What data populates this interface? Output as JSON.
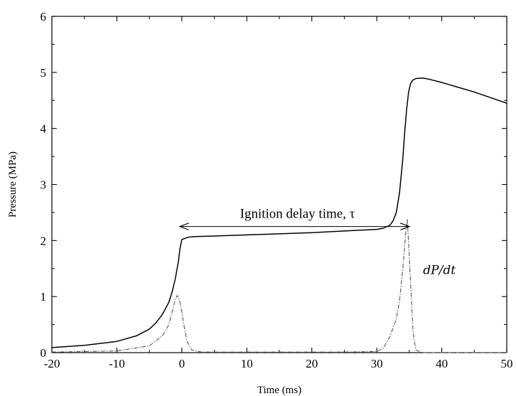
{
  "chart_data": {
    "type": "line",
    "title": "",
    "xlabel": "Time (ms)",
    "ylabel": "Pressure (MPa)",
    "xlim": [
      -20,
      50
    ],
    "ylim": [
      0,
      6
    ],
    "x_ticks": [
      -20,
      -10,
      0,
      10,
      20,
      30,
      40,
      50
    ],
    "y_ticks": [
      0,
      1,
      2,
      3,
      4,
      5,
      6
    ],
    "grid": false,
    "legend": "none",
    "series": [
      {
        "style": "solid",
        "color": "#000000",
        "x": [
          -20,
          -15,
          -10,
          -7,
          -5,
          -4,
          -3,
          -2,
          -1.5,
          -1,
          -0.5,
          -0.3,
          0,
          1,
          2,
          5,
          10,
          15,
          20,
          25,
          30,
          31,
          32,
          32.5,
          33,
          33.5,
          34,
          34.3,
          34.6,
          34.9,
          35.2,
          35.5,
          36,
          37,
          38,
          40,
          45,
          50
        ],
        "y": [
          0.09,
          0.13,
          0.2,
          0.3,
          0.42,
          0.53,
          0.68,
          0.9,
          1.08,
          1.32,
          1.65,
          1.85,
          2.02,
          2.06,
          2.07,
          2.08,
          2.1,
          2.12,
          2.14,
          2.17,
          2.2,
          2.22,
          2.27,
          2.35,
          2.5,
          2.85,
          3.45,
          3.95,
          4.35,
          4.65,
          4.8,
          4.86,
          4.89,
          4.9,
          4.88,
          4.82,
          4.65,
          4.45
        ]
      },
      {
        "name": "dP/dt",
        "style": "dash-dot",
        "color": "#555555",
        "x": [
          -20,
          -10,
          -5,
          -3,
          -2,
          -1.5,
          -1,
          -0.7,
          -0.4,
          0,
          0.3,
          0.8,
          1.5,
          3,
          10,
          20,
          25,
          30,
          31,
          32,
          33,
          33.5,
          34,
          34.5,
          34.7,
          35,
          35.3,
          35.6,
          36,
          37,
          40,
          50
        ],
        "y": [
          0.01,
          0.03,
          0.12,
          0.3,
          0.5,
          0.72,
          0.95,
          1.02,
          0.95,
          0.72,
          0.5,
          0.2,
          0.05,
          0.01,
          0.01,
          0.01,
          0.01,
          0.02,
          0.08,
          0.28,
          0.6,
          0.92,
          1.5,
          2.2,
          2.38,
          1.7,
          1.0,
          0.35,
          0.05,
          0.0,
          0.0,
          0.0
        ]
      }
    ],
    "annotations": {
      "ignition_label": "Ignition delay time, τ",
      "ignition_arrow_x": [
        -0.3,
        35
      ],
      "ignition_arrow_y": 2.25,
      "dpdt_label": "dP/dt",
      "dpdt_label_pos": [
        38,
        1.4
      ]
    }
  }
}
